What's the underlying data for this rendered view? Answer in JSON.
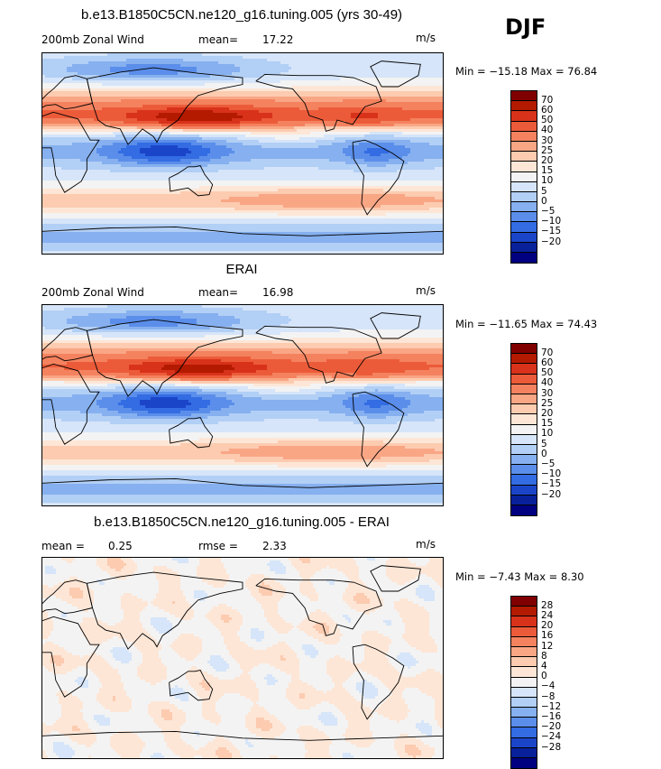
{
  "season": "DJF",
  "panels": [
    {
      "title": "b.e13.B1850C5CN.ne120_g16.tuning.005 (yrs 30-49)",
      "left_label": "200mb Zonal Wind",
      "stat_label": "mean=",
      "stat_value": "17.22",
      "units": "m/s",
      "minmax": "Min = −15.18 Max =  76.84",
      "colorbar": {
        "labels": [
          "70",
          "60",
          "50",
          "40",
          "30",
          "25",
          "20",
          "15",
          "10",
          "5",
          "0",
          "−5",
          "−10",
          "−15",
          "−20"
        ],
        "colors": [
          "#800000",
          "#b31a00",
          "#d8321b",
          "#ec5b39",
          "#f4825f",
          "#f9a685",
          "#fccbb0",
          "#fde6d6",
          "#f3f3f3",
          "#d6e5f9",
          "#b2cff5",
          "#86b0ef",
          "#5b8eea",
          "#336ce3",
          "#1b45c8",
          "#08219b",
          "#000080"
        ]
      },
      "field": {
        "kind": "wind",
        "jet_scale": 1.0
      }
    },
    {
      "title": "ERAI",
      "left_label": "200mb Zonal Wind",
      "stat_label": "mean=",
      "stat_value": "16.98",
      "units": "m/s",
      "minmax": "Min = −11.65 Max =  74.43",
      "colorbar": {
        "labels": [
          "70",
          "60",
          "50",
          "40",
          "30",
          "25",
          "20",
          "15",
          "10",
          "5",
          "0",
          "−5",
          "−10",
          "−15",
          "−20"
        ],
        "colors": [
          "#800000",
          "#b31a00",
          "#d8321b",
          "#ec5b39",
          "#f4825f",
          "#f9a685",
          "#fccbb0",
          "#fde6d6",
          "#f3f3f3",
          "#d6e5f9",
          "#b2cff5",
          "#86b0ef",
          "#5b8eea",
          "#336ce3",
          "#1b45c8",
          "#08219b",
          "#000080"
        ]
      },
      "field": {
        "kind": "wind",
        "jet_scale": 0.95
      }
    },
    {
      "title": "b.e13.B1850C5CN.ne120_g16.tuning.005 - ERAI",
      "left_label": "mean =",
      "left_value": "0.25",
      "stat_label": "rmse =",
      "stat_value": "2.33",
      "units": "m/s",
      "minmax": "Min =  −7.43 Max =   8.30",
      "colorbar": {
        "labels": [
          "28",
          "24",
          "20",
          "16",
          "12",
          "8",
          "4",
          "0",
          "−4",
          "−8",
          "−12",
          "−16",
          "−20",
          "−24",
          "−28"
        ],
        "colors": [
          "#800000",
          "#b31a00",
          "#d8321b",
          "#ec5b39",
          "#f4825f",
          "#f9a685",
          "#fccbb0",
          "#fde6d6",
          "#f3f3f3",
          "#d6e5f9",
          "#b2cff5",
          "#86b0ef",
          "#5b8eea",
          "#336ce3",
          "#1b45c8",
          "#08219b",
          "#000080"
        ]
      },
      "field": {
        "kind": "diff",
        "jet_scale": 1.0
      }
    }
  ]
}
